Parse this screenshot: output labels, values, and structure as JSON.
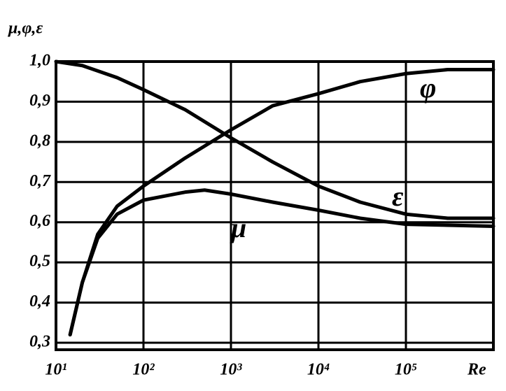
{
  "chart_data": {
    "type": "line",
    "y_label": "μ,φ,ε",
    "x_label": "Re",
    "log_x": true,
    "grid": true,
    "xlim": [
      10,
      1000000
    ],
    "ylim": [
      0.3,
      1.0
    ],
    "xticks": [
      {
        "value": 10,
        "label": "10¹"
      },
      {
        "value": 100,
        "label": "10²"
      },
      {
        "value": 1000,
        "label": "10³"
      },
      {
        "value": 10000,
        "label": "10⁴"
      },
      {
        "value": 100000,
        "label": "10⁵"
      }
    ],
    "yticks": [
      {
        "value": 1.0,
        "label": "1,0"
      },
      {
        "value": 0.9,
        "label": "0,9"
      },
      {
        "value": 0.8,
        "label": "0,8"
      },
      {
        "value": 0.7,
        "label": "0,7"
      },
      {
        "value": 0.6,
        "label": "0,6"
      },
      {
        "value": 0.5,
        "label": "0,5"
      },
      {
        "value": 0.4,
        "label": "0,4"
      },
      {
        "value": 0.3,
        "label": "0,3"
      }
    ],
    "series": [
      {
        "name": "φ",
        "color": "#000000",
        "x": [
          14.5,
          20,
          30,
          50,
          100,
          300,
          1000,
          3000,
          10000,
          30000,
          100000,
          300000,
          1000000
        ],
        "values": [
          0.32,
          0.45,
          0.57,
          0.64,
          0.69,
          0.76,
          0.83,
          0.89,
          0.92,
          0.95,
          0.97,
          0.98,
          0.98
        ]
      },
      {
        "name": "ε",
        "color": "#000000",
        "x": [
          10,
          20,
          50,
          100,
          300,
          1000,
          3000,
          10000,
          30000,
          100000,
          300000,
          1000000
        ],
        "values": [
          1.0,
          0.99,
          0.96,
          0.93,
          0.88,
          0.81,
          0.75,
          0.69,
          0.65,
          0.62,
          0.61,
          0.61
        ]
      },
      {
        "name": "μ",
        "color": "#000000",
        "x": [
          14.5,
          20,
          30,
          50,
          100,
          300,
          500,
          1000,
          3000,
          10000,
          30000,
          100000,
          1000000
        ],
        "values": [
          0.32,
          0.45,
          0.56,
          0.62,
          0.655,
          0.675,
          0.68,
          0.67,
          0.65,
          0.63,
          0.61,
          0.595,
          0.59
        ]
      }
    ]
  }
}
